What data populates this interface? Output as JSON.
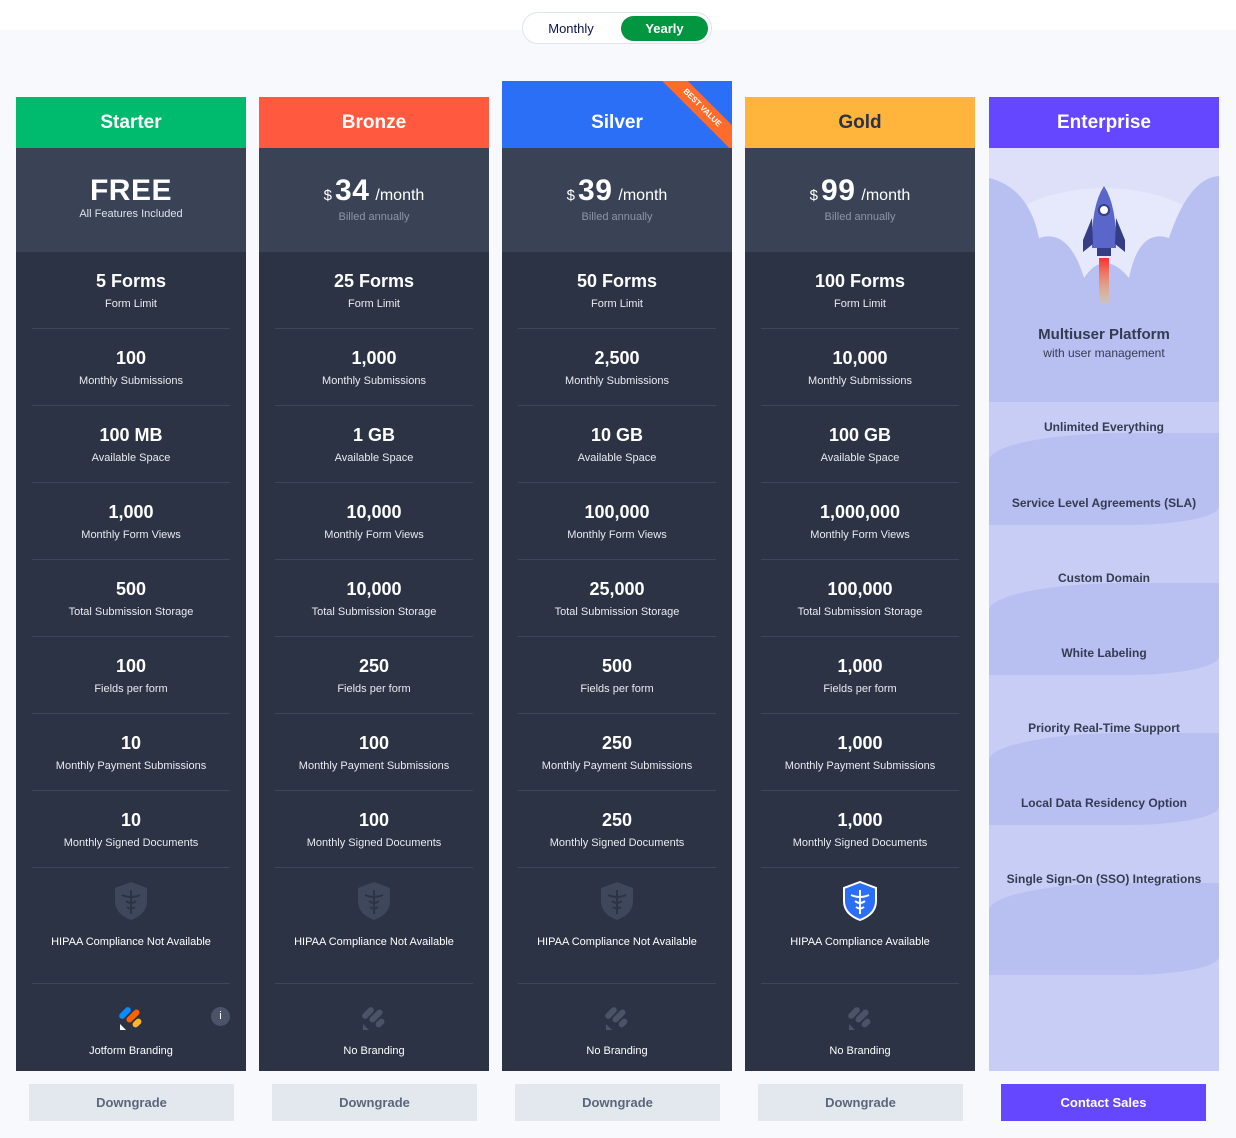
{
  "billing_toggle": {
    "monthly": "Monthly",
    "yearly": "Yearly",
    "selected": "Yearly"
  },
  "plans": [
    {
      "name": "Starter",
      "color": "#00bb6d",
      "price_main": "FREE",
      "price_sub": "All Features Included",
      "free": true,
      "features": [
        [
          "5 Forms",
          "Form Limit"
        ],
        [
          "100",
          "Monthly Submissions"
        ],
        [
          "100 MB",
          "Available Space"
        ],
        [
          "1,000",
          "Monthly Form Views"
        ],
        [
          "500",
          "Total Submission Storage"
        ],
        [
          "100",
          "Fields per form"
        ],
        [
          "10",
          "Monthly Payment Submissions"
        ],
        [
          "10",
          "Monthly Signed Documents"
        ]
      ],
      "hipaa": "HIPAA Compliance Not Available",
      "hipaa_available": false,
      "branding": "Jotform Branding",
      "branding_on": true,
      "button": "Downgrade"
    },
    {
      "name": "Bronze",
      "color": "#ff5a40",
      "currency": "$",
      "price_main": "34",
      "per": "/month",
      "price_sub": "Billed annually",
      "features": [
        [
          "25 Forms",
          "Form Limit"
        ],
        [
          "1,000",
          "Monthly Submissions"
        ],
        [
          "1 GB",
          "Available Space"
        ],
        [
          "10,000",
          "Monthly Form Views"
        ],
        [
          "10,000",
          "Total Submission Storage"
        ],
        [
          "250",
          "Fields per form"
        ],
        [
          "100",
          "Monthly Payment Submissions"
        ],
        [
          "100",
          "Monthly Signed Documents"
        ]
      ],
      "hipaa": "HIPAA Compliance Not Available",
      "hipaa_available": false,
      "branding": "No Branding",
      "branding_on": false,
      "button": "Downgrade"
    },
    {
      "name": "Silver",
      "color": "#2b6ff6",
      "currency": "$",
      "price_main": "39",
      "per": "/month",
      "price_sub": "Billed annually",
      "ribbon": "BEST VALUE",
      "features": [
        [
          "50 Forms",
          "Form Limit"
        ],
        [
          "2,500",
          "Monthly Submissions"
        ],
        [
          "10 GB",
          "Available Space"
        ],
        [
          "100,000",
          "Monthly Form Views"
        ],
        [
          "25,000",
          "Total Submission Storage"
        ],
        [
          "500",
          "Fields per form"
        ],
        [
          "250",
          "Monthly Payment Submissions"
        ],
        [
          "250",
          "Monthly Signed Documents"
        ]
      ],
      "hipaa": "HIPAA Compliance Not Available",
      "hipaa_available": false,
      "branding": "No Branding",
      "branding_on": false,
      "button": "Downgrade"
    },
    {
      "name": "Gold",
      "color": "#ffb43c",
      "text_color": "#2c3344",
      "currency": "$",
      "price_main": "99",
      "per": "/month",
      "price_sub": "Billed annually",
      "features": [
        [
          "100 Forms",
          "Form Limit"
        ],
        [
          "10,000",
          "Monthly Submissions"
        ],
        [
          "100 GB",
          "Available Space"
        ],
        [
          "1,000,000",
          "Monthly Form Views"
        ],
        [
          "100,000",
          "Total Submission Storage"
        ],
        [
          "1,000",
          "Fields per form"
        ],
        [
          "1,000",
          "Monthly Payment Submissions"
        ],
        [
          "1,000",
          "Monthly Signed Documents"
        ]
      ],
      "hipaa": "HIPAA Compliance Available",
      "hipaa_available": true,
      "branding": "No Branding",
      "branding_on": false,
      "button": "Downgrade"
    }
  ],
  "enterprise": {
    "name": "Enterprise",
    "title": "Multiuser Platform",
    "subtitle": "with user management",
    "items": [
      "Unlimited Everything",
      "Service Level Agreements (SLA)",
      "Custom Domain",
      "White Labeling",
      "Priority Real-Time Support",
      "Local Data Residency Option",
      "Single Sign-On (SSO) Integrations"
    ],
    "button": "Contact Sales"
  },
  "info_icon_label": "i"
}
